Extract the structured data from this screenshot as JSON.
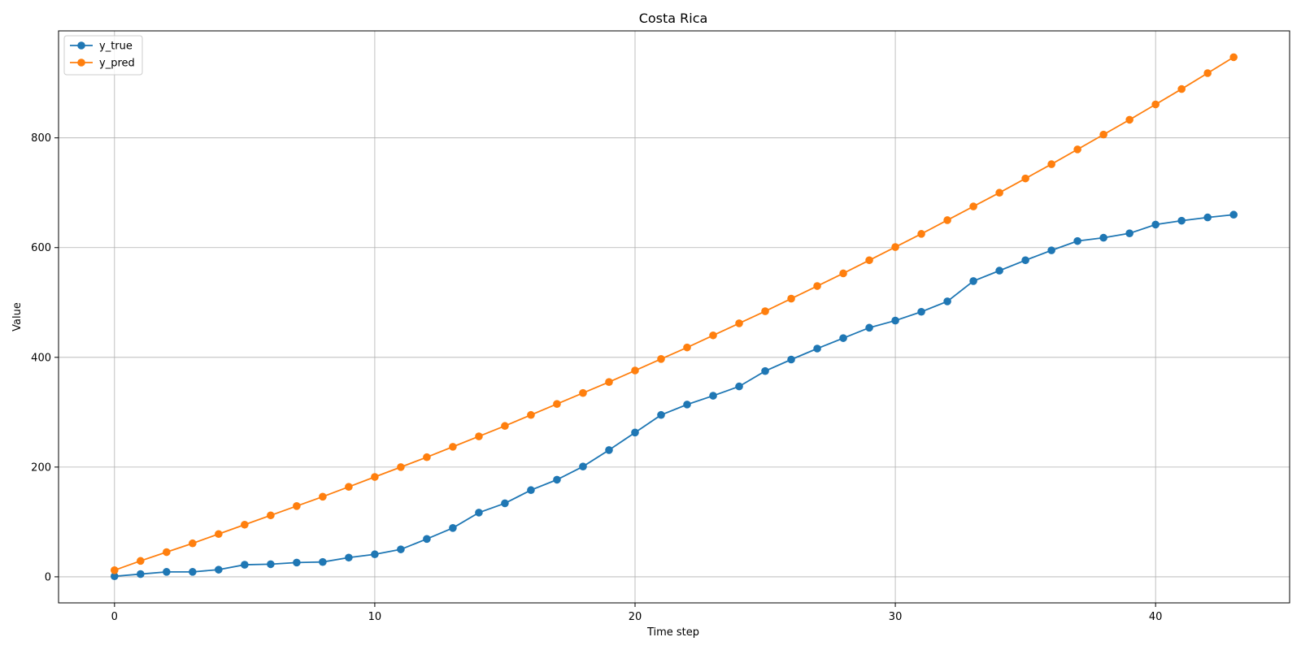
{
  "chart_data": {
    "type": "line",
    "title": "Costa Rica",
    "xlabel": "Time step",
    "ylabel": "Value",
    "xlim": [
      -2.15,
      45.15
    ],
    "ylim": [
      -47.5,
      995
    ],
    "xticks": [
      0,
      10,
      20,
      30,
      40
    ],
    "yticks": [
      0,
      200,
      400,
      600,
      800
    ],
    "grid": true,
    "legend_position": "upper-left",
    "x": [
      0,
      1,
      2,
      3,
      4,
      5,
      6,
      7,
      8,
      9,
      10,
      11,
      12,
      13,
      14,
      15,
      16,
      17,
      18,
      19,
      20,
      21,
      22,
      23,
      24,
      25,
      26,
      27,
      28,
      29,
      30,
      31,
      32,
      33,
      34,
      35,
      36,
      37,
      38,
      39,
      40,
      41,
      42,
      43
    ],
    "series": [
      {
        "name": "y_true",
        "color": "#1f77b4",
        "values": [
          1,
          5,
          9,
          9,
          13,
          22,
          23,
          26,
          27,
          35,
          41,
          50,
          69,
          89,
          117,
          134,
          158,
          177,
          201,
          231,
          263,
          295,
          314,
          330,
          347,
          375,
          396,
          416,
          435,
          454,
          467,
          483,
          502,
          539,
          558,
          577,
          595,
          612,
          618,
          626,
          642,
          649,
          655,
          660
        ]
      },
      {
        "name": "y_pred",
        "color": "#ff7f0e",
        "values": [
          12,
          29,
          45,
          61,
          78,
          95,
          112,
          129,
          146,
          164,
          182,
          200,
          218,
          237,
          256,
          275,
          295,
          315,
          335,
          355,
          376,
          397,
          418,
          440,
          462,
          484,
          507,
          530,
          553,
          577,
          601,
          625,
          650,
          675,
          700,
          726,
          752,
          779,
          806,
          833,
          861,
          889,
          918,
          947
        ]
      }
    ]
  }
}
